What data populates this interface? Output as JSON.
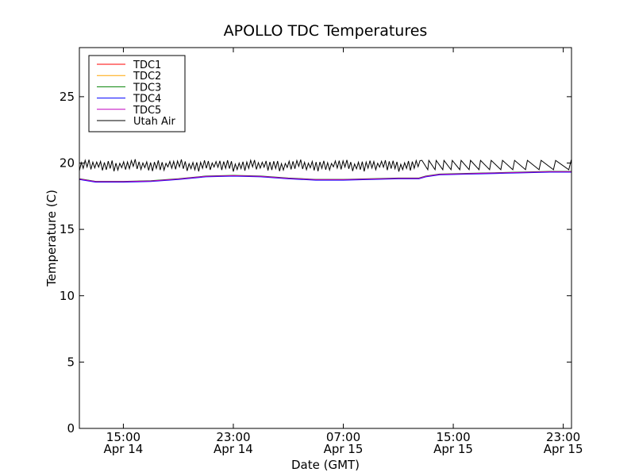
{
  "chart_data": {
    "type": "line",
    "title": "APOLLO TDC Temperatures",
    "xlabel": "Date (GMT)",
    "ylabel": "Temperature (C)",
    "x_unit": "hours since 2014-04-14 00:00 GMT",
    "xlim": [
      11.8,
      47.6
    ],
    "ylim": [
      0,
      28.7
    ],
    "yticks": [
      0,
      5,
      10,
      15,
      20,
      25
    ],
    "xticks": [
      {
        "x": 15,
        "time": "15:00",
        "date": "Apr 14"
      },
      {
        "x": 23,
        "time": "23:00",
        "date": "Apr 14"
      },
      {
        "x": 31,
        "time": "07:00",
        "date": "Apr 15"
      },
      {
        "x": 39,
        "time": "15:00",
        "date": "Apr 15"
      },
      {
        "x": 47,
        "time": "23:00",
        "date": "Apr 15"
      }
    ],
    "grid": false,
    "legend_position": "top-left",
    "series": [
      {
        "name": "TDC1",
        "color": "#ff0000",
        "x": [
          11.8,
          13,
          15,
          17,
          19,
          21,
          23,
          25,
          27,
          29,
          31,
          33,
          35,
          36.5,
          37,
          38,
          40,
          42,
          44,
          46,
          47.6
        ],
        "y": [
          18.8,
          18.6,
          18.6,
          18.65,
          18.8,
          19.0,
          19.05,
          19.0,
          18.85,
          18.75,
          18.75,
          18.8,
          18.85,
          18.85,
          19.0,
          19.15,
          19.2,
          19.25,
          19.3,
          19.35,
          19.35
        ]
      },
      {
        "name": "TDC2",
        "color": "#ffa500",
        "x": [
          11.8,
          13,
          15,
          17,
          19,
          21,
          23,
          25,
          27,
          29,
          31,
          33,
          35,
          36.5,
          37,
          38,
          40,
          42,
          44,
          46,
          47.6
        ],
        "y": [
          18.78,
          18.58,
          18.58,
          18.63,
          18.78,
          18.98,
          19.03,
          18.98,
          18.83,
          18.73,
          18.73,
          18.78,
          18.83,
          18.83,
          18.98,
          19.13,
          19.18,
          19.23,
          19.28,
          19.33,
          19.33
        ]
      },
      {
        "name": "TDC3",
        "color": "#008000",
        "x": [
          11.8,
          13,
          15,
          17,
          19,
          21,
          23,
          25,
          27,
          29,
          31,
          33,
          35,
          36.5,
          37,
          38,
          40,
          42,
          44,
          46,
          47.6
        ],
        "y": [
          18.82,
          18.62,
          18.62,
          18.67,
          18.82,
          19.02,
          19.07,
          19.02,
          18.87,
          18.77,
          18.77,
          18.82,
          18.87,
          18.87,
          19.02,
          19.17,
          19.22,
          19.27,
          19.32,
          19.37,
          19.37
        ]
      },
      {
        "name": "TDC4",
        "color": "#0000ff",
        "x": [
          11.8,
          13,
          15,
          17,
          19,
          21,
          23,
          25,
          27,
          29,
          31,
          33,
          35,
          36.5,
          37,
          38,
          40,
          42,
          44,
          46,
          47.6
        ],
        "y": [
          18.76,
          18.56,
          18.56,
          18.61,
          18.76,
          18.96,
          19.01,
          18.96,
          18.81,
          18.71,
          18.71,
          18.76,
          18.81,
          18.81,
          18.96,
          19.11,
          19.16,
          19.21,
          19.26,
          19.31,
          19.31
        ]
      },
      {
        "name": "TDC5",
        "color": "#bf00bf",
        "x": [
          11.8,
          13,
          15,
          17,
          19,
          21,
          23,
          25,
          27,
          29,
          31,
          33,
          35,
          36.5,
          37,
          38,
          40,
          42,
          44,
          46,
          47.6
        ],
        "y": [
          18.8,
          18.6,
          18.6,
          18.65,
          18.8,
          19.0,
          19.05,
          19.0,
          18.85,
          18.75,
          18.75,
          18.8,
          18.85,
          18.85,
          19.0,
          19.15,
          19.2,
          19.25,
          19.3,
          19.35,
          19.35
        ]
      },
      {
        "name": "Utah Air",
        "color": "#000000",
        "description": "oscillates ~19.5-20.2 C; dense cycling until ~36.7 h, then sawtooth with growing period",
        "oscillation": {
          "base": 19.55,
          "amplitude": 0.55,
          "dense_until": 36.7,
          "dense_period": 0.28,
          "sawtooth_start_period": 0.5,
          "sawtooth_end_period": 1.2,
          "sawtooth_low": 19.5,
          "sawtooth_high": 20.2
        }
      }
    ]
  }
}
